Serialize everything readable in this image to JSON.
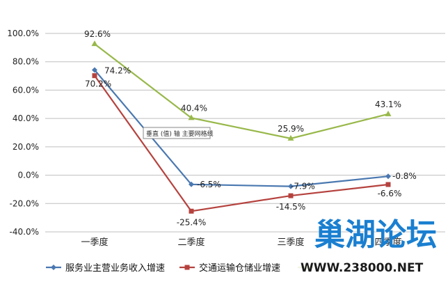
{
  "chart_data": {
    "type": "line",
    "categories": [
      "一季度",
      "二季度",
      "三季度",
      "四季度"
    ],
    "ylim": [
      -40,
      100
    ],
    "yticks": [
      -40,
      -20,
      0,
      20,
      40,
      60,
      80,
      100
    ],
    "ytick_labels": [
      "-40.0%",
      "-20.0%",
      "0.0%",
      "20.0%",
      "40.0%",
      "60.0%",
      "80.0%",
      "100.0%"
    ],
    "grid": true,
    "legend_position": "bottom",
    "series": [
      {
        "name": "服务业主营业务收入增速",
        "color": "#4a78b0",
        "marker": "diamond",
        "values": [
          74.2,
          -6.5,
          -7.9,
          -0.8
        ],
        "labels": [
          "74.2%",
          "-6.5%",
          "-7.9%",
          "-0.8%"
        ]
      },
      {
        "name": "交通运输仓储业增速",
        "color": "#b5423e",
        "marker": "square",
        "values": [
          70.2,
          -25.4,
          -14.5,
          -6.6
        ],
        "labels": [
          "70.2%",
          "-25.4%",
          "-14.5%",
          "-6.6%"
        ]
      },
      {
        "name": "",
        "color": "#98b84a",
        "marker": "triangle",
        "values": [
          92.6,
          40.4,
          25.9,
          43.1
        ],
        "labels": [
          "92.6%",
          "40.4%",
          "25.9%",
          "43.1%"
        ]
      }
    ]
  },
  "tooltip": {
    "text": "垂直 (值) 轴 主要网格线"
  },
  "watermark": {
    "title": "巢湖论坛",
    "url": "WWW.238000.NET"
  }
}
